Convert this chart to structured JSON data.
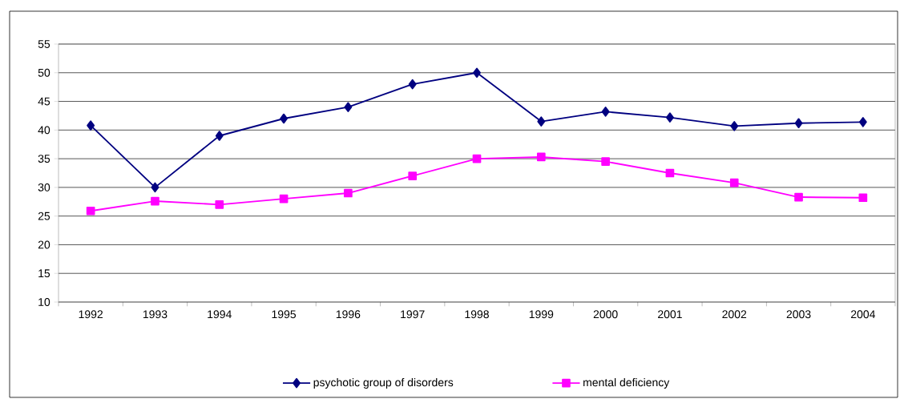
{
  "chart_data": {
    "type": "line",
    "categories": [
      "1992",
      "1993",
      "1994",
      "1995",
      "1996",
      "1997",
      "1998",
      "1999",
      "2000",
      "2001",
      "2002",
      "2003",
      "2004"
    ],
    "series": [
      {
        "name": "psychotic group of disorders",
        "color": "#000080",
        "marker": "diamond",
        "values": [
          40.8,
          30,
          39,
          42,
          44,
          48,
          50,
          41.5,
          43.2,
          42.2,
          40.7,
          41.2,
          41.4
        ]
      },
      {
        "name": "mental deficiency",
        "color": "#ff00ff",
        "marker": "square",
        "values": [
          25.9,
          27.6,
          27,
          28,
          29,
          32,
          35,
          35.3,
          34.5,
          32.5,
          30.8,
          28.3,
          28.2
        ]
      }
    ],
    "ylim": [
      10,
      55
    ],
    "yticks": [
      10,
      15,
      20,
      25,
      30,
      35,
      40,
      45,
      50,
      55
    ],
    "grid": "y",
    "legend": "bottom"
  }
}
